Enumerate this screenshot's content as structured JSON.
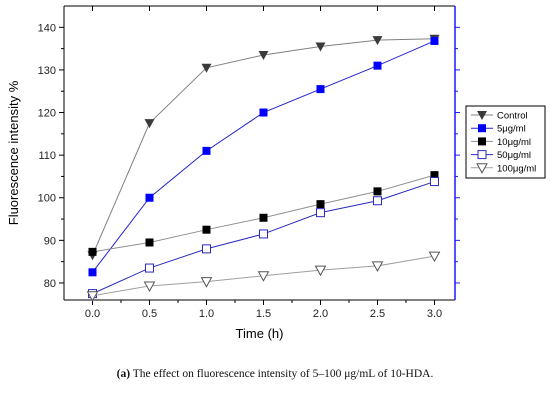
{
  "chart_data": {
    "type": "line",
    "xlabel": "Time (h)",
    "ylabel": "Fluorescence intensity %",
    "xlim": [
      -0.25,
      3.18
    ],
    "ylim": [
      76,
      145
    ],
    "x_ticks": [
      "0.0",
      "0.5",
      "1.0",
      "1.5",
      "2.0",
      "2.5",
      "3.0"
    ],
    "y_ticks": [
      "80",
      "90",
      "100",
      "110",
      "120",
      "130",
      "140"
    ],
    "x": [
      0.0,
      0.5,
      1.0,
      1.5,
      2.0,
      2.5,
      3.0
    ],
    "legend_position": "right",
    "series": [
      {
        "name": "Control",
        "values": [
          86.5,
          117.5,
          130.5,
          133.5,
          135.5,
          137.0,
          137.3
        ],
        "color": "#808080",
        "marker_color": "#3a3a3a",
        "marker": "triangle-down-filled"
      },
      {
        "name": "5μg/ml",
        "values": [
          82.5,
          100.0,
          111.0,
          120.0,
          125.5,
          131.0,
          136.8
        ],
        "color": "#2222cc",
        "marker_color": "#0000ff",
        "marker": "square-filled"
      },
      {
        "name": "10μg/ml",
        "values": [
          87.3,
          89.5,
          92.5,
          95.3,
          98.5,
          101.5,
          105.3
        ],
        "color": "#909090",
        "marker_color": "#000000",
        "marker": "square-filled"
      },
      {
        "name": "50μg/ml",
        "values": [
          77.5,
          83.5,
          88.0,
          91.5,
          96.5,
          99.3,
          103.8
        ],
        "color": "#2a2ac0",
        "marker_color": "#2a2ac0",
        "marker": "square-open"
      },
      {
        "name": "100μg/ml",
        "values": [
          77.0,
          79.3,
          80.3,
          81.7,
          83.0,
          84.0,
          86.3
        ],
        "color": "#a0a0a0",
        "marker_color": "#555555",
        "marker": "triangle-down-open"
      }
    ]
  },
  "caption": {
    "label": "(a)",
    "text": " The effect on fluorescence intensity of 5–100 μg/mL of 10-HDA."
  }
}
